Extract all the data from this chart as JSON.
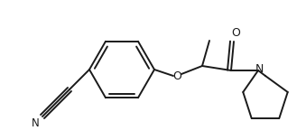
{
  "bg_color": "#ffffff",
  "line_color": "#1a1a1a",
  "line_width": 1.4,
  "fig_width": 3.39,
  "fig_height": 1.55,
  "dpi": 100,
  "xlim": [
    0,
    339
  ],
  "ylim": [
    0,
    155
  ]
}
